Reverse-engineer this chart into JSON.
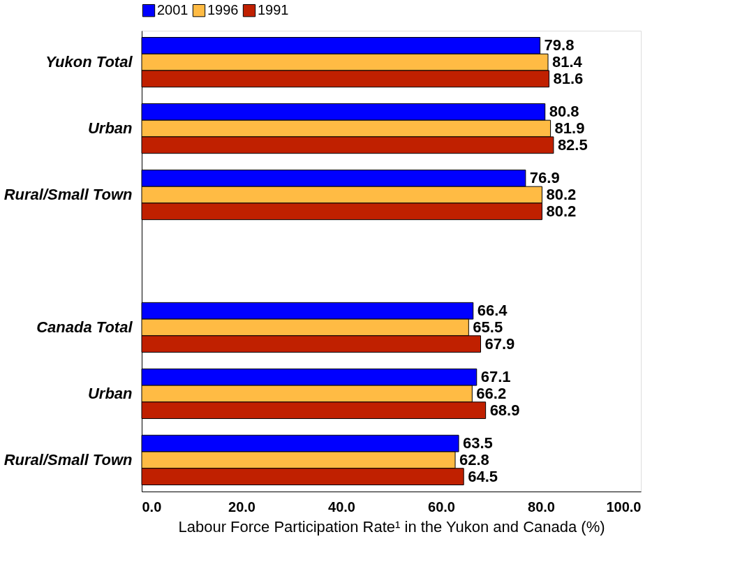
{
  "chart_data": {
    "type": "bar",
    "orientation": "horizontal",
    "xlabel": "Labour Force Participation Rate¹ in the Yukon and Canada (%)",
    "categories": [
      "Yukon Total",
      "Urban",
      "Rural/Small Town",
      null,
      "Canada Total",
      "Urban",
      "Rural/Small Town"
    ],
    "series": [
      {
        "name": "2001",
        "color": "#0000ff",
        "values": [
          79.8,
          80.8,
          76.9,
          null,
          66.4,
          67.1,
          63.5
        ]
      },
      {
        "name": "1996",
        "color": "#ffbb44",
        "values": [
          81.4,
          81.9,
          80.2,
          null,
          65.5,
          66.2,
          62.8
        ]
      },
      {
        "name": "1991",
        "color": "#c02000",
        "values": [
          81.6,
          82.5,
          80.2,
          null,
          67.9,
          68.9,
          64.5
        ]
      }
    ],
    "xlim": [
      0,
      100
    ],
    "xticks": [
      {
        "value": 0,
        "label": "0.0"
      },
      {
        "value": 20,
        "label": "20.0"
      },
      {
        "value": 40,
        "label": "40.0"
      },
      {
        "value": 60,
        "label": "60.0"
      },
      {
        "value": 80,
        "label": "80.0"
      },
      {
        "value": 100,
        "label": "100.0"
      }
    ],
    "data_labels": true,
    "legend": "top",
    "grid": false
  }
}
